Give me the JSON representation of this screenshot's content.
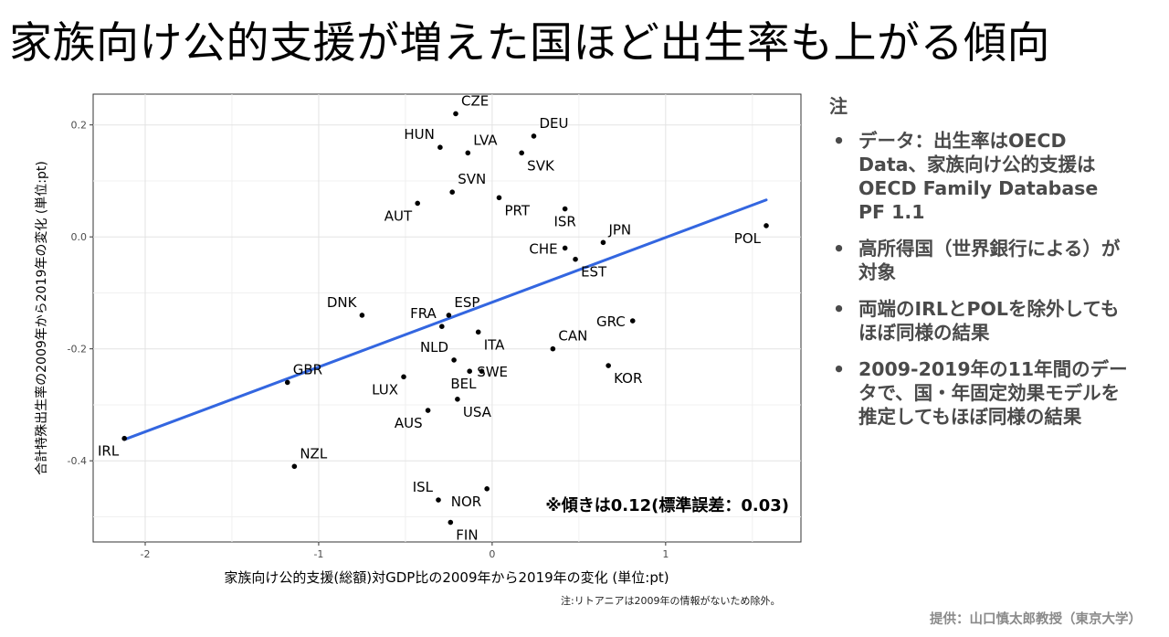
{
  "title": "家族向け公的支援が増えた国ほど出生率も上がる傾向",
  "notes": {
    "heading": "注",
    "items": [
      "データ：出生率はOECD Data、家族向け公的支援はOECD Family Database PF 1.1",
      "高所得国（世界銀行による）が対象",
      "両端のIRLとPOLを除外してもほぼ同様の結果",
      "2009-2019年の11年間のデータで、国・年固定効果モデルを推定してもほぼ同様の結果"
    ]
  },
  "footnote": "注:リトアニアは2009年の情報がないため除外。",
  "credit": "提供：山口慎太郎教授（東京大学）",
  "chart_data": {
    "type": "scatter",
    "xlabel": "家族向け公的支援(総額)対GDP比の2009年から2019年の変化 (単位:pt)",
    "ylabel": "合計特殊出生率の2009年から2019年の変化 (単位:pt)",
    "xlim": [
      -2.3,
      1.78
    ],
    "ylim": [
      -0.545,
      0.255
    ],
    "xticks": [
      -2,
      -1,
      0,
      1
    ],
    "xtick_labels": [
      "-2",
      "-1",
      "0",
      "1"
    ],
    "yticks": [
      -0.4,
      -0.2,
      0.0,
      0.2
    ],
    "ytick_labels": [
      "-0.4",
      "-0.2",
      "0.0",
      "0.2"
    ],
    "grid": true,
    "annotation": "※傾きは0.12(標準誤差：0.03)",
    "fit_line": {
      "x": [
        -2.12,
        1.58
      ],
      "y": [
        -0.362,
        0.066
      ],
      "color": "#3366e0"
    },
    "points": [
      {
        "label": "CZE",
        "x": -0.21,
        "y": 0.22,
        "label_pos": "ne"
      },
      {
        "label": "DEU",
        "x": 0.24,
        "y": 0.18,
        "label_pos": "ne"
      },
      {
        "label": "HUN",
        "x": -0.3,
        "y": 0.16,
        "label_pos": "nw"
      },
      {
        "label": "LVA",
        "x": -0.14,
        "y": 0.15,
        "label_pos": "ne"
      },
      {
        "label": "SVK",
        "x": 0.17,
        "y": 0.15,
        "label_pos": "se"
      },
      {
        "label": "SVN",
        "x": -0.23,
        "y": 0.08,
        "label_pos": "ne"
      },
      {
        "label": "AUT",
        "x": -0.43,
        "y": 0.06,
        "label_pos": "sw"
      },
      {
        "label": "PRT",
        "x": 0.04,
        "y": 0.07,
        "label_pos": "se"
      },
      {
        "label": "ISR",
        "x": 0.42,
        "y": 0.05,
        "label_pos": "s"
      },
      {
        "label": "POL",
        "x": 1.58,
        "y": 0.02,
        "label_pos": "sw"
      },
      {
        "label": "JPN",
        "x": 0.64,
        "y": -0.01,
        "label_pos": "ne"
      },
      {
        "label": "CHE",
        "x": 0.42,
        "y": -0.02,
        "label_pos": "w"
      },
      {
        "label": "EST",
        "x": 0.48,
        "y": -0.04,
        "label_pos": "se"
      },
      {
        "label": "DNK",
        "x": -0.75,
        "y": -0.14,
        "label_pos": "nw"
      },
      {
        "label": "ESP",
        "x": -0.25,
        "y": -0.14,
        "label_pos": "ne"
      },
      {
        "label": "FRA",
        "x": -0.29,
        "y": -0.16,
        "label_pos": "nw"
      },
      {
        "label": "GRC",
        "x": 0.81,
        "y": -0.15,
        "label_pos": "w"
      },
      {
        "label": "ITA",
        "x": -0.08,
        "y": -0.17,
        "label_pos": "se"
      },
      {
        "label": "CAN",
        "x": 0.35,
        "y": -0.2,
        "label_pos": "ne"
      },
      {
        "label": "NLD",
        "x": -0.22,
        "y": -0.22,
        "label_pos": "nw"
      },
      {
        "label": "KOR",
        "x": 0.67,
        "y": -0.23,
        "label_pos": "se"
      },
      {
        "label": "SWE",
        "x": -0.13,
        "y": -0.24,
        "label_pos": "e"
      },
      {
        "label": "BEL",
        "x": -0.06,
        "y": -0.24,
        "label_pos": "sw"
      },
      {
        "label": "GBR",
        "x": -1.18,
        "y": -0.26,
        "label_pos": "ne"
      },
      {
        "label": "LUX",
        "x": -0.51,
        "y": -0.25,
        "label_pos": "sw"
      },
      {
        "label": "USA",
        "x": -0.2,
        "y": -0.29,
        "label_pos": "se"
      },
      {
        "label": "AUS",
        "x": -0.37,
        "y": -0.31,
        "label_pos": "sw"
      },
      {
        "label": "IRL",
        "x": -2.12,
        "y": -0.36,
        "label_pos": "sw"
      },
      {
        "label": "NZL",
        "x": -1.14,
        "y": -0.41,
        "label_pos": "ne"
      },
      {
        "label": "ISL",
        "x": -0.31,
        "y": -0.47,
        "label_pos": "nw"
      },
      {
        "label": "NOR",
        "x": -0.03,
        "y": -0.45,
        "label_pos": "sw"
      },
      {
        "label": "FIN",
        "x": -0.24,
        "y": -0.51,
        "label_pos": "se"
      }
    ]
  }
}
